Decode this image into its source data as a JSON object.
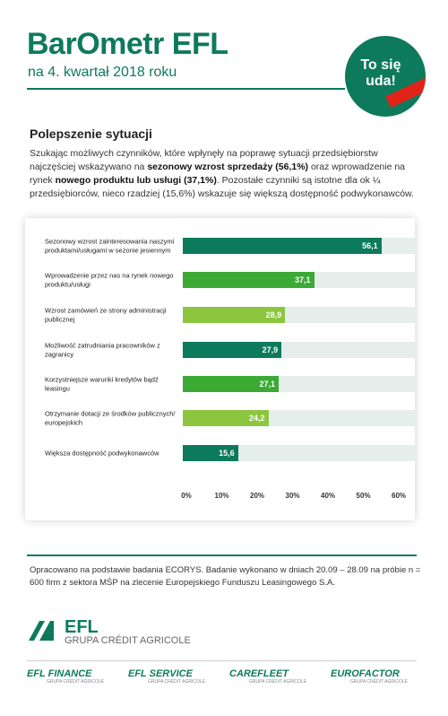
{
  "header": {
    "logo": "BarOmetr EFL",
    "subtitle": "na 4. kwartał 2018 roku",
    "badge": [
      "To się",
      "uda!"
    ]
  },
  "section_title": "Polepszenie sytuacji",
  "intro": [
    "Szukając możliwych czynników, które wpłynęły na poprawę sytuacji przedsiębiorstw najczęściej wskazywano na ",
    "sezonowy wzrost sprzedaży (56,1%)",
    " oraz wprowadzenie na rynek ",
    "nowego produktu lub usługi (37,1%)",
    ". Pozostałe czynniki są istotne dla ok ¼ przedsiębiorców, nieco rzadziej (15,6%) wskazuje się większą dostępność podwykonawców."
  ],
  "chart_data": {
    "type": "barh",
    "categories": [
      "Sezonowy wzrost zainteresowania naszymi produktami/usługami w sezonie jesiennym",
      "Wprowadzenie przez nas na rynek nowego produktu/usługi",
      "Wzrost zamówień ze strony administracji publicznej",
      "Możliwość zatrudniania pracowników z zagranicy",
      "Korzystniejsze warunki kredytów bądź leasingu",
      "Otrzymanie dotacji ze środków publicznych/ europejskich",
      "Większa dostępność podwykonawców"
    ],
    "values": [
      56.1,
      37.1,
      28.9,
      27.9,
      27.1,
      24.2,
      15.6
    ],
    "value_labels": [
      "56,1",
      "37,1",
      "28,9",
      "27,9",
      "27,1",
      "24,2",
      "15,6"
    ],
    "colors": [
      "#0d7a5c",
      "#3aaa35",
      "#8cc63f",
      "#0d7a5c",
      "#3aaa35",
      "#8cc63f",
      "#0d7a5c"
    ],
    "track_color": "#e5eeeb",
    "xlim": [
      0,
      60
    ],
    "xticks": [
      {
        "value": 0,
        "label": "0%"
      },
      {
        "value": 10,
        "label": "10%"
      },
      {
        "value": 20,
        "label": "20%"
      },
      {
        "value": 30,
        "label": "30%"
      },
      {
        "value": 40,
        "label": "40%"
      },
      {
        "value": 50,
        "label": "50%"
      },
      {
        "value": 60,
        "label": "60%"
      }
    ]
  },
  "footnote": "Opracowano na podstawie badania ECORYS. Badanie wykonano w dniach 20.09 – 28.09 na próbie n = 600 firm z sektora MŚP na zlecenie Europejskiego Funduszu Leasingowego S.A.",
  "footer": {
    "logo": "EFL",
    "logo_subtitle": "GRUPA CRÉDIT AGRICOLE",
    "brands": [
      {
        "name": "EFL FINANCE",
        "subtitle": "GRUPA CRÉDIT AGRICOLE"
      },
      {
        "name": "EFL SERVICE",
        "subtitle": "GRUPA CRÉDIT AGRICOLE"
      },
      {
        "name": "CAREFLEET",
        "subtitle": "GRUPA CRÉDIT AGRICOLE"
      },
      {
        "name": "EUROFACTOR",
        "subtitle": "GRUPA CRÉDIT AGRICOLE"
      }
    ]
  }
}
